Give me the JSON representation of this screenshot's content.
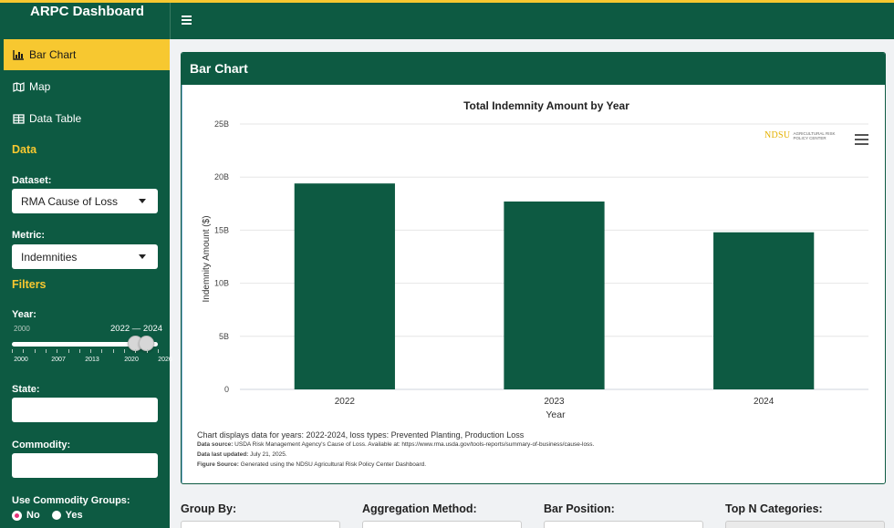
{
  "app": {
    "title": "ARPC Dashboard"
  },
  "sidebar": {
    "menu": [
      {
        "label": "Bar Chart",
        "icon": "bar-chart-icon",
        "active": true
      },
      {
        "label": "Map",
        "icon": "map-icon",
        "active": false
      },
      {
        "label": "Data Table",
        "icon": "table-icon",
        "active": false
      }
    ],
    "data_section": "Data",
    "dataset": {
      "label": "Dataset:",
      "value": "RMA Cause of Loss"
    },
    "metric": {
      "label": "Metric:",
      "value": "Indemnities"
    },
    "filters_section": "Filters",
    "year": {
      "label": "Year:",
      "min": "2000",
      "range_label": "2022 — 2024",
      "ticks": [
        "2000",
        "2007",
        "2013",
        "2020",
        "2026"
      ],
      "selected": [
        2022,
        2024
      ],
      "domain": [
        2000,
        2026
      ]
    },
    "state": {
      "label": "State:",
      "value": ""
    },
    "commodity": {
      "label": "Commodity:",
      "value": ""
    },
    "commodity_groups": {
      "label": "Use Commodity Groups:",
      "options": [
        "No",
        "Yes"
      ],
      "selected": "No"
    }
  },
  "card": {
    "title": "Bar Chart"
  },
  "logo": {
    "text": "NDSU",
    "subtext": "AGRICULTURAL RISK POLICY CENTER"
  },
  "chart_data": {
    "type": "bar",
    "title": "Total Indemnity Amount by Year",
    "xlabel": "Year",
    "ylabel": "Indemnity Amount ($)",
    "categories": [
      "2022",
      "2023",
      "2024"
    ],
    "values": [
      19400000000,
      17700000000,
      14800000000
    ],
    "ylim": [
      0,
      25000000000
    ],
    "yticks": [
      {
        "value": 0,
        "label": "0"
      },
      {
        "value": 5000000000,
        "label": "5B"
      },
      {
        "value": 10000000000,
        "label": "10B"
      },
      {
        "value": 15000000000,
        "label": "15B"
      },
      {
        "value": 20000000000,
        "label": "20B"
      },
      {
        "value": 25000000000,
        "label": "25B"
      }
    ],
    "color": "#0d5a42",
    "grid": true
  },
  "captions": {
    "line1": "Chart displays data for years: 2022-2024, loss types: Prevented Planting, Production Loss",
    "source_label": "Data source:",
    "source_text": " USDA Risk Management Agency's Cause of Loss. Available at: https://www.rma.usda.gov/tools-reports/summary-of-business/cause-loss.",
    "updated_label": "Data last updated:",
    "updated_text": " July 21, 2025.",
    "figure_label": "Figure Source:",
    "figure_text": " Generated using the NDSU Agricultural Risk Policy Center Dashboard."
  },
  "controls": {
    "group_by": "Group By:",
    "aggregation": "Aggregation Method:",
    "bar_position": "Bar Position:",
    "top_n": "Top N Categories:"
  },
  "colors": {
    "brand_green": "#0d5a42",
    "accent_yellow": "#f7c830",
    "radio_pink": "#e6337a"
  }
}
